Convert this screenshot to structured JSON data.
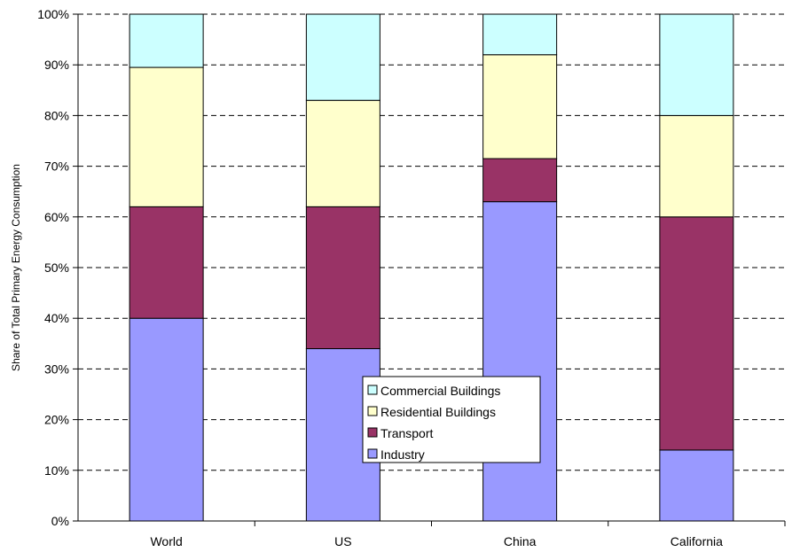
{
  "chart_data": {
    "type": "bar",
    "stacked": true,
    "categories": [
      "World",
      "US",
      "China",
      "California"
    ],
    "series": [
      {
        "name": "Industry",
        "values": [
          40,
          34,
          63,
          14
        ],
        "color": "#9999FF"
      },
      {
        "name": "Transport",
        "values": [
          22,
          28,
          8.5,
          46
        ],
        "color": "#993366"
      },
      {
        "name": "Residential Buildings",
        "values": [
          27.5,
          21,
          20.5,
          20
        ],
        "color": "#FFFFCC"
      },
      {
        "name": "Commercial Buildings",
        "values": [
          10.5,
          17,
          8,
          20
        ],
        "color": "#CCFFFF"
      }
    ],
    "ylabel": "Share of Total Primary Energy Consumption",
    "ylim": [
      0,
      100
    ],
    "yticks": [
      "0%",
      "10%",
      "20%",
      "30%",
      "40%",
      "50%",
      "60%",
      "70%",
      "80%",
      "90%",
      "100%"
    ],
    "grid": true,
    "legend": {
      "placement": "center-lower",
      "order": [
        "Commercial Buildings",
        "Residential Buildings",
        "Transport",
        "Industry"
      ]
    }
  }
}
